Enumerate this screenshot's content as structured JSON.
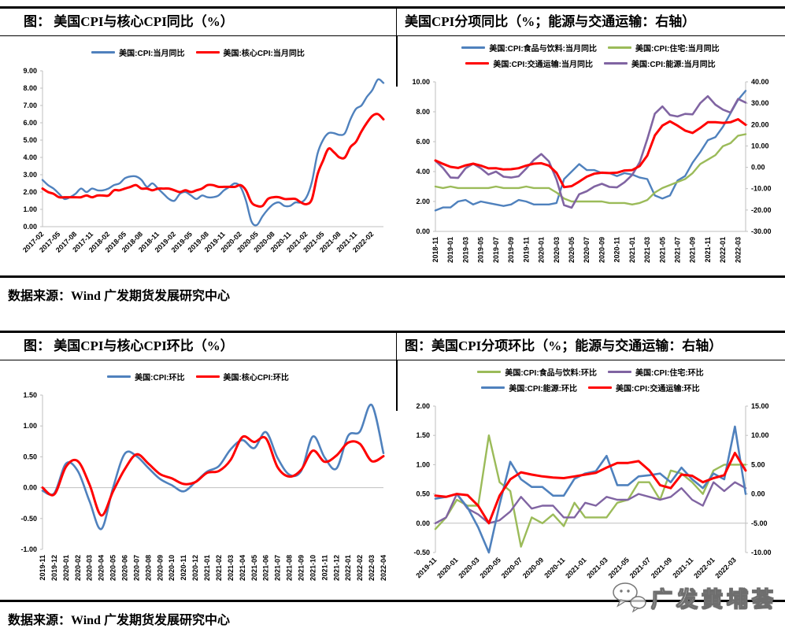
{
  "sections": [
    {
      "title_left": "图： 美国CPI与核心CPI同比（%）",
      "title_right": "美国CPI分项同比（%；能源与交通运输：右轴）",
      "source": "数据来源：Wind  广发期货发展研究中心"
    },
    {
      "title_left": "图： 美国CPI与核心CPI环比（%）",
      "title_right": "图：美国CPI分项环比（%；能源与交通运输：右轴）",
      "source": "数据来源：Wind  广发期货发展研究中心"
    }
  ],
  "watermark": {
    "text": "广发黄埔荟",
    "icon": "wechat-bubbles-icon"
  },
  "colors": {
    "blue": "#4F81BD",
    "red": "#FF0000",
    "green": "#9BBB59",
    "purple": "#8064A2"
  },
  "chart_data": [
    {
      "type": "line",
      "title": "美国CPI与核心CPI同比（%）",
      "smooth": true,
      "x_label": {
        "every": 3,
        "rotate": 45
      },
      "axes": {
        "left": {
          "min": 0,
          "max": 9,
          "step": 1
        }
      },
      "legend_rows": [
        [
          0,
          1
        ]
      ],
      "categories": [
        "2017-02",
        "2017-03",
        "2017-04",
        "2017-05",
        "2017-06",
        "2017-07",
        "2017-08",
        "2017-09",
        "2017-10",
        "2017-11",
        "2017-12",
        "2018-01",
        "2018-02",
        "2018-03",
        "2018-04",
        "2018-05",
        "2018-06",
        "2018-07",
        "2018-08",
        "2018-09",
        "2018-10",
        "2018-11",
        "2018-12",
        "2019-01",
        "2019-02",
        "2019-03",
        "2019-04",
        "2019-05",
        "2019-06",
        "2019-07",
        "2019-08",
        "2019-09",
        "2019-10",
        "2019-11",
        "2019-12",
        "2020-01",
        "2020-02",
        "2020-03",
        "2020-04",
        "2020-05",
        "2020-06",
        "2020-07",
        "2020-08",
        "2020-09",
        "2020-10",
        "2020-11",
        "2020-12",
        "2021-01",
        "2021-02",
        "2021-03",
        "2021-04",
        "2021-05",
        "2021-06",
        "2021-07",
        "2021-08",
        "2021-09",
        "2021-10",
        "2021-11",
        "2021-12",
        "2022-01",
        "2022-02",
        "2022-03",
        "2022-04"
      ],
      "series": [
        {
          "name": "美国:CPI:当月同比",
          "color": "#4F81BD",
          "axis": "left",
          "width": 2.4,
          "values": [
            2.7,
            2.4,
            2.2,
            1.9,
            1.6,
            1.7,
            1.9,
            2.2,
            2.0,
            2.2,
            2.1,
            2.1,
            2.2,
            2.4,
            2.5,
            2.8,
            2.9,
            2.9,
            2.7,
            2.3,
            2.5,
            2.2,
            1.9,
            1.6,
            1.5,
            1.9,
            2.0,
            1.8,
            1.6,
            1.8,
            1.7,
            1.7,
            1.8,
            2.1,
            2.3,
            2.5,
            2.3,
            1.5,
            0.3,
            0.1,
            0.6,
            1.0,
            1.3,
            1.4,
            1.2,
            1.2,
            1.4,
            1.4,
            1.7,
            2.6,
            4.2,
            5.0,
            5.4,
            5.4,
            5.3,
            5.4,
            6.2,
            6.8,
            7.0,
            7.5,
            7.9,
            8.5,
            8.3
          ]
        },
        {
          "name": "美国:核心CPI:当月同比",
          "color": "#FF0000",
          "axis": "left",
          "width": 3,
          "values": [
            2.2,
            2.0,
            1.9,
            1.7,
            1.7,
            1.7,
            1.7,
            1.7,
            1.8,
            1.7,
            1.8,
            1.8,
            1.8,
            2.1,
            2.1,
            2.2,
            2.3,
            2.4,
            2.2,
            2.2,
            2.1,
            2.2,
            2.2,
            2.2,
            2.1,
            2.0,
            2.1,
            2.0,
            2.1,
            2.2,
            2.4,
            2.4,
            2.3,
            2.3,
            2.3,
            2.3,
            2.4,
            2.1,
            1.4,
            1.2,
            1.2,
            1.6,
            1.7,
            1.7,
            1.6,
            1.6,
            1.6,
            1.4,
            1.3,
            1.6,
            3.0,
            3.8,
            4.5,
            4.3,
            4.0,
            4.0,
            4.6,
            4.9,
            5.5,
            6.0,
            6.4,
            6.5,
            6.2
          ]
        }
      ]
    },
    {
      "type": "line",
      "title": "美国CPI分项同比（%；能源与交通运输：右轴）",
      "smooth": false,
      "x_label": {
        "every": 2,
        "rotate": 90
      },
      "axes": {
        "left": {
          "min": 0,
          "max": 10,
          "step": 2
        },
        "right": {
          "min": -30,
          "max": 40,
          "step": 10
        }
      },
      "legend_rows": [
        [
          0,
          1
        ],
        [
          3,
          2
        ]
      ],
      "categories": [
        "2018-11",
        "2018-12",
        "2019-01",
        "2019-02",
        "2019-03",
        "2019-04",
        "2019-05",
        "2019-06",
        "2019-07",
        "2019-08",
        "2019-09",
        "2019-10",
        "2019-11",
        "2019-12",
        "2020-01",
        "2020-02",
        "2020-03",
        "2020-04",
        "2020-05",
        "2020-06",
        "2020-07",
        "2020-08",
        "2020-09",
        "2020-10",
        "2020-11",
        "2020-12",
        "2021-01",
        "2021-02",
        "2021-03",
        "2021-04",
        "2021-05",
        "2021-06",
        "2021-07",
        "2021-08",
        "2021-09",
        "2021-10",
        "2021-11",
        "2021-12",
        "2022-01",
        "2022-02",
        "2022-03",
        "2022-04"
      ],
      "series": [
        {
          "name": "美国:CPI:食品与饮料:当月同比",
          "color": "#4F81BD",
          "axis": "left",
          "width": 2.4,
          "values": [
            1.4,
            1.6,
            1.6,
            2.0,
            2.1,
            1.8,
            2.0,
            1.9,
            1.8,
            1.7,
            1.8,
            2.1,
            2.0,
            1.8,
            1.8,
            1.8,
            1.9,
            3.5,
            4.0,
            4.5,
            4.1,
            4.1,
            3.9,
            3.9,
            3.7,
            3.9,
            3.8,
            3.6,
            3.5,
            2.4,
            2.2,
            2.4,
            3.4,
            3.7,
            4.6,
            5.3,
            6.1,
            6.3,
            7.0,
            7.9,
            8.8,
            9.4
          ]
        },
        {
          "name": "美国:CPI:住宅:当月同比",
          "color": "#9BBB59",
          "axis": "left",
          "width": 2.4,
          "values": [
            3.0,
            2.9,
            3.0,
            2.9,
            2.9,
            2.9,
            2.9,
            2.9,
            3.0,
            2.9,
            2.9,
            2.9,
            3.0,
            2.9,
            2.9,
            2.9,
            2.6,
            2.2,
            2.0,
            2.0,
            2.0,
            2.0,
            2.0,
            1.9,
            1.9,
            1.9,
            1.8,
            1.9,
            2.1,
            2.6,
            2.9,
            3.1,
            3.3,
            3.5,
            3.9,
            4.5,
            4.8,
            5.1,
            5.7,
            5.9,
            6.4,
            6.5
          ]
        },
        {
          "name": "美国:CPI:能源:当月同比",
          "color": "#8064A2",
          "axis": "right",
          "width": 2.6,
          "values": [
            3.1,
            -0.3,
            -4.8,
            -5.0,
            -0.4,
            1.7,
            -0.5,
            -3.4,
            -2.0,
            -4.4,
            -4.8,
            -4.2,
            -0.6,
            3.4,
            6.2,
            2.8,
            -5.7,
            -17.7,
            -18.9,
            -12.6,
            -11.2,
            -9.0,
            -7.7,
            -9.2,
            -9.4,
            -7.0,
            -3.6,
            2.4,
            13.2,
            25.1,
            28.5,
            24.5,
            23.8,
            25.0,
            24.8,
            30.0,
            33.3,
            29.3,
            27.0,
            25.6,
            32.0,
            30.3
          ]
        },
        {
          "name": "美国:CPI:交通运输:当月同比",
          "color": "#FF0000",
          "axis": "right",
          "width": 3,
          "values": [
            3.2,
            1.6,
            0.2,
            -0.3,
            0.9,
            1.7,
            0.8,
            -0.5,
            -0.4,
            -1.0,
            -0.9,
            -0.4,
            0.8,
            1.7,
            1.9,
            0.8,
            -2.6,
            -9.3,
            -8.8,
            -6.7,
            -4.4,
            -3.0,
            -2.5,
            -2.7,
            -2.5,
            -1.5,
            -1.3,
            0.6,
            5.5,
            14.9,
            19.5,
            21.5,
            19.5,
            17.2,
            16.1,
            18.4,
            21.1,
            21.1,
            20.8,
            21.1,
            22.5,
            19.9
          ]
        }
      ]
    },
    {
      "type": "line",
      "title": "美国CPI与核心CPI环比（%）",
      "smooth": true,
      "x_label": {
        "every": 1,
        "rotate": 90
      },
      "axes": {
        "left": {
          "min": -1,
          "max": 1.5,
          "step": 0.5
        }
      },
      "legend_rows": [
        [
          0,
          1
        ]
      ],
      "categories": [
        "2019-11",
        "2019-12",
        "2020-01",
        "2020-02",
        "2020-03",
        "2020-04",
        "2020-05",
        "2020-06",
        "2020-07",
        "2020-08",
        "2020-09",
        "2020-10",
        "2020-11",
        "2020-12",
        "2021-01",
        "2021-02",
        "2021-03",
        "2021-04",
        "2021-05",
        "2021-06",
        "2021-07",
        "2021-08",
        "2021-09",
        "2021-10",
        "2021-11",
        "2021-12",
        "2022-01",
        "2022-02",
        "2022-03",
        "2022-04"
      ],
      "series": [
        {
          "name": "美国:CPI:环比",
          "color": "#4F81BD",
          "axis": "left",
          "width": 2.6,
          "values": [
            -0.05,
            -0.09,
            0.39,
            0.27,
            -0.22,
            -0.67,
            0.0,
            0.55,
            0.51,
            0.32,
            0.14,
            0.04,
            -0.06,
            0.09,
            0.26,
            0.35,
            0.62,
            0.77,
            0.64,
            0.9,
            0.48,
            0.21,
            0.27,
            0.83,
            0.49,
            0.31,
            0.84,
            0.91,
            1.34,
            0.56
          ]
        },
        {
          "name": "美国:核心CPI:环比",
          "color": "#FF0000",
          "axis": "left",
          "width": 3,
          "values": [
            0.0,
            -0.11,
            0.34,
            0.43,
            0.05,
            -0.45,
            -0.06,
            0.3,
            0.54,
            0.39,
            0.22,
            0.15,
            0.06,
            0.09,
            0.24,
            0.27,
            0.45,
            0.82,
            0.74,
            0.8,
            0.33,
            0.18,
            0.29,
            0.6,
            0.42,
            0.52,
            0.73,
            0.71,
            0.43,
            0.51
          ]
        }
      ]
    },
    {
      "type": "line",
      "title": "美国CPI分项环比（%；能源与交通运输：右轴）",
      "smooth": false,
      "x_label": {
        "every": 2,
        "rotate": 45
      },
      "axes": {
        "left": {
          "min": -0.5,
          "max": 2,
          "step": 0.5
        },
        "right": {
          "min": -10,
          "max": 15,
          "step": 5
        }
      },
      "legend_rows": [
        [
          0,
          1
        ],
        [
          2,
          3
        ]
      ],
      "categories": [
        "2019-11",
        "2019-12",
        "2020-01",
        "2020-02",
        "2020-03",
        "2020-04",
        "2020-05",
        "2020-06",
        "2020-07",
        "2020-08",
        "2020-09",
        "2020-10",
        "2020-11",
        "2020-12",
        "2021-01",
        "2021-02",
        "2021-03",
        "2021-04",
        "2021-05",
        "2021-06",
        "2021-07",
        "2021-08",
        "2021-09",
        "2021-10",
        "2021-11",
        "2021-12",
        "2022-01",
        "2022-02",
        "2022-03",
        "2022-04"
      ],
      "series": [
        {
          "name": "美国:CPI:食品与饮料:环比",
          "color": "#9BBB59",
          "axis": "left",
          "width": 2.4,
          "values": [
            -0.1,
            0.1,
            0.4,
            0.3,
            0.3,
            1.5,
            0.7,
            0.55,
            -0.4,
            0.1,
            0.0,
            0.15,
            -0.05,
            0.35,
            0.1,
            0.1,
            0.1,
            0.35,
            0.4,
            0.7,
            0.7,
            0.4,
            0.9,
            0.85,
            0.7,
            0.5,
            0.9,
            1.0,
            1.0,
            1.0
          ]
        },
        {
          "name": "美国:CPI:住宅:环比",
          "color": "#8064A2",
          "axis": "left",
          "width": 2.4,
          "values": [
            0.0,
            0.1,
            0.5,
            0.25,
            0.15,
            0.0,
            0.05,
            0.2,
            0.45,
            0.25,
            0.3,
            0.3,
            0.1,
            0.1,
            0.35,
            0.3,
            0.45,
            0.4,
            0.4,
            0.5,
            0.45,
            0.4,
            0.45,
            0.6,
            0.4,
            0.3,
            0.7,
            0.55,
            0.7,
            0.6
          ]
        },
        {
          "name": "美国:CPI:能源:环比",
          "color": "#4F81BD",
          "axis": "right",
          "width": 2.6,
          "values": [
            -0.8,
            -0.5,
            0.0,
            -2.3,
            -5.7,
            -10.0,
            -1.8,
            5.5,
            2.5,
            1.2,
            1.2,
            -0.3,
            -0.3,
            2.6,
            3.5,
            3.9,
            6.5,
            1.5,
            1.5,
            3.0,
            3.2,
            3.5,
            2.0,
            4.5,
            2.5,
            1.0,
            3.5,
            2.5,
            11.5,
            0.0
          ]
        },
        {
          "name": "美国:CPI:交通运输:环比",
          "color": "#FF0000",
          "axis": "right",
          "width": 3,
          "values": [
            -0.3,
            -0.5,
            0.0,
            -0.2,
            -2.0,
            -5.0,
            -0.3,
            2.5,
            3.7,
            3.3,
            3.0,
            2.8,
            2.7,
            3.0,
            3.3,
            3.6,
            4.5,
            5.3,
            5.3,
            5.6,
            4.0,
            1.5,
            1.0,
            3.3,
            3.1,
            2.0,
            2.7,
            3.2,
            7.0,
            4.0
          ]
        }
      ]
    }
  ]
}
